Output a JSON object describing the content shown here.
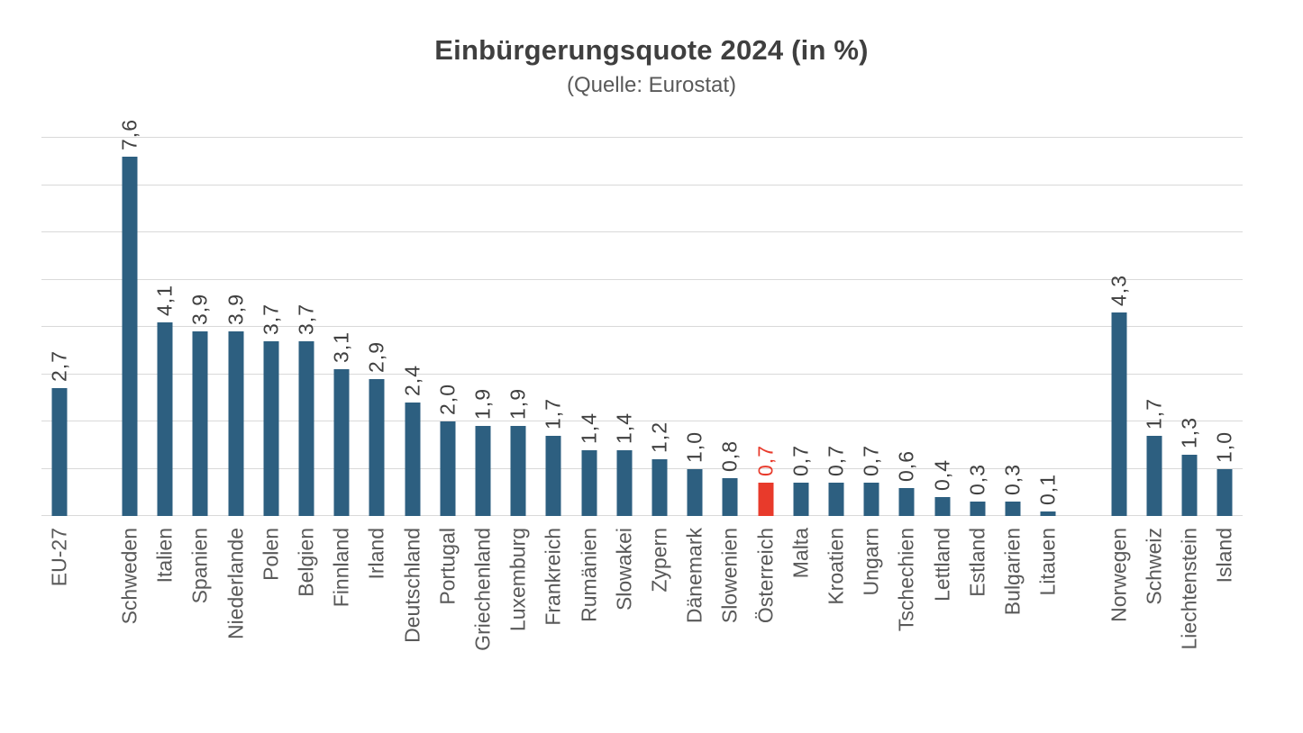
{
  "chart_data": {
    "type": "bar",
    "title": "Einbürgerungsquote 2024 (in %)",
    "subtitle": "(Quelle: Eurostat)",
    "xlabel": "",
    "ylabel": "",
    "ylim": [
      0,
      8
    ],
    "gridline_step": 1,
    "grid": true,
    "y_axis_tick_labels_visible": false,
    "legend_position": "none",
    "value_labels_rotated_vertical": true,
    "category_labels_rotated_vertical": true,
    "colors": {
      "bar": "#2D5F80",
      "highlight_bar": "#E83A2B",
      "value_label": "#404040",
      "category_label": "#595959",
      "gridline": "#D9D9D9",
      "title": "#3F3F3F",
      "subtitle": "#595959",
      "background": "#FFFFFF"
    },
    "items": [
      {
        "label": "EU-27",
        "value": 2.7,
        "display": "2,7",
        "highlight": false
      },
      {
        "gap": true
      },
      {
        "label": "Schweden",
        "value": 7.6,
        "display": "7,6",
        "highlight": false
      },
      {
        "label": "Italien",
        "value": 4.1,
        "display": "4,1",
        "highlight": false
      },
      {
        "label": "Spanien",
        "value": 3.9,
        "display": "3,9",
        "highlight": false
      },
      {
        "label": "Niederlande",
        "value": 3.9,
        "display": "3,9",
        "highlight": false
      },
      {
        "label": "Polen",
        "value": 3.7,
        "display": "3,7",
        "highlight": false
      },
      {
        "label": "Belgien",
        "value": 3.7,
        "display": "3,7",
        "highlight": false
      },
      {
        "label": "Finnland",
        "value": 3.1,
        "display": "3,1",
        "highlight": false
      },
      {
        "label": "Irland",
        "value": 2.9,
        "display": "2,9",
        "highlight": false
      },
      {
        "label": "Deutschland",
        "value": 2.4,
        "display": "2,4",
        "highlight": false
      },
      {
        "label": "Portugal",
        "value": 2.0,
        "display": "2,0",
        "highlight": false
      },
      {
        "label": "Griechenland",
        "value": 1.9,
        "display": "1,9",
        "highlight": false
      },
      {
        "label": "Luxemburg",
        "value": 1.9,
        "display": "1,9",
        "highlight": false
      },
      {
        "label": "Frankreich",
        "value": 1.7,
        "display": "1,7",
        "highlight": false
      },
      {
        "label": "Rumänien",
        "value": 1.4,
        "display": "1,4",
        "highlight": false
      },
      {
        "label": "Slowakei",
        "value": 1.4,
        "display": "1,4",
        "highlight": false
      },
      {
        "label": "Zypern",
        "value": 1.2,
        "display": "1,2",
        "highlight": false
      },
      {
        "label": "Dänemark",
        "value": 1.0,
        "display": "1,0",
        "highlight": false
      },
      {
        "label": "Slowenien",
        "value": 0.8,
        "display": "0,8",
        "highlight": false
      },
      {
        "label": "Österreich",
        "value": 0.7,
        "display": "0,7",
        "highlight": true
      },
      {
        "label": "Malta",
        "value": 0.7,
        "display": "0,7",
        "highlight": false
      },
      {
        "label": "Kroatien",
        "value": 0.7,
        "display": "0,7",
        "highlight": false
      },
      {
        "label": "Ungarn",
        "value": 0.7,
        "display": "0,7",
        "highlight": false
      },
      {
        "label": "Tschechien",
        "value": 0.6,
        "display": "0,6",
        "highlight": false
      },
      {
        "label": "Lettland",
        "value": 0.4,
        "display": "0,4",
        "highlight": false
      },
      {
        "label": "Estland",
        "value": 0.3,
        "display": "0,3",
        "highlight": false
      },
      {
        "label": "Bulgarien",
        "value": 0.3,
        "display": "0,3",
        "highlight": false
      },
      {
        "label": "Litauen",
        "value": 0.1,
        "display": "0,1",
        "highlight": false
      },
      {
        "gap": true
      },
      {
        "label": "Norwegen",
        "value": 4.3,
        "display": "4,3",
        "highlight": false
      },
      {
        "label": "Schweiz",
        "value": 1.7,
        "display": "1,7",
        "highlight": false
      },
      {
        "label": "Liechtenstein",
        "value": 1.3,
        "display": "1,3",
        "highlight": false
      },
      {
        "label": "Island",
        "value": 1.0,
        "display": "1,0",
        "highlight": false
      }
    ]
  }
}
